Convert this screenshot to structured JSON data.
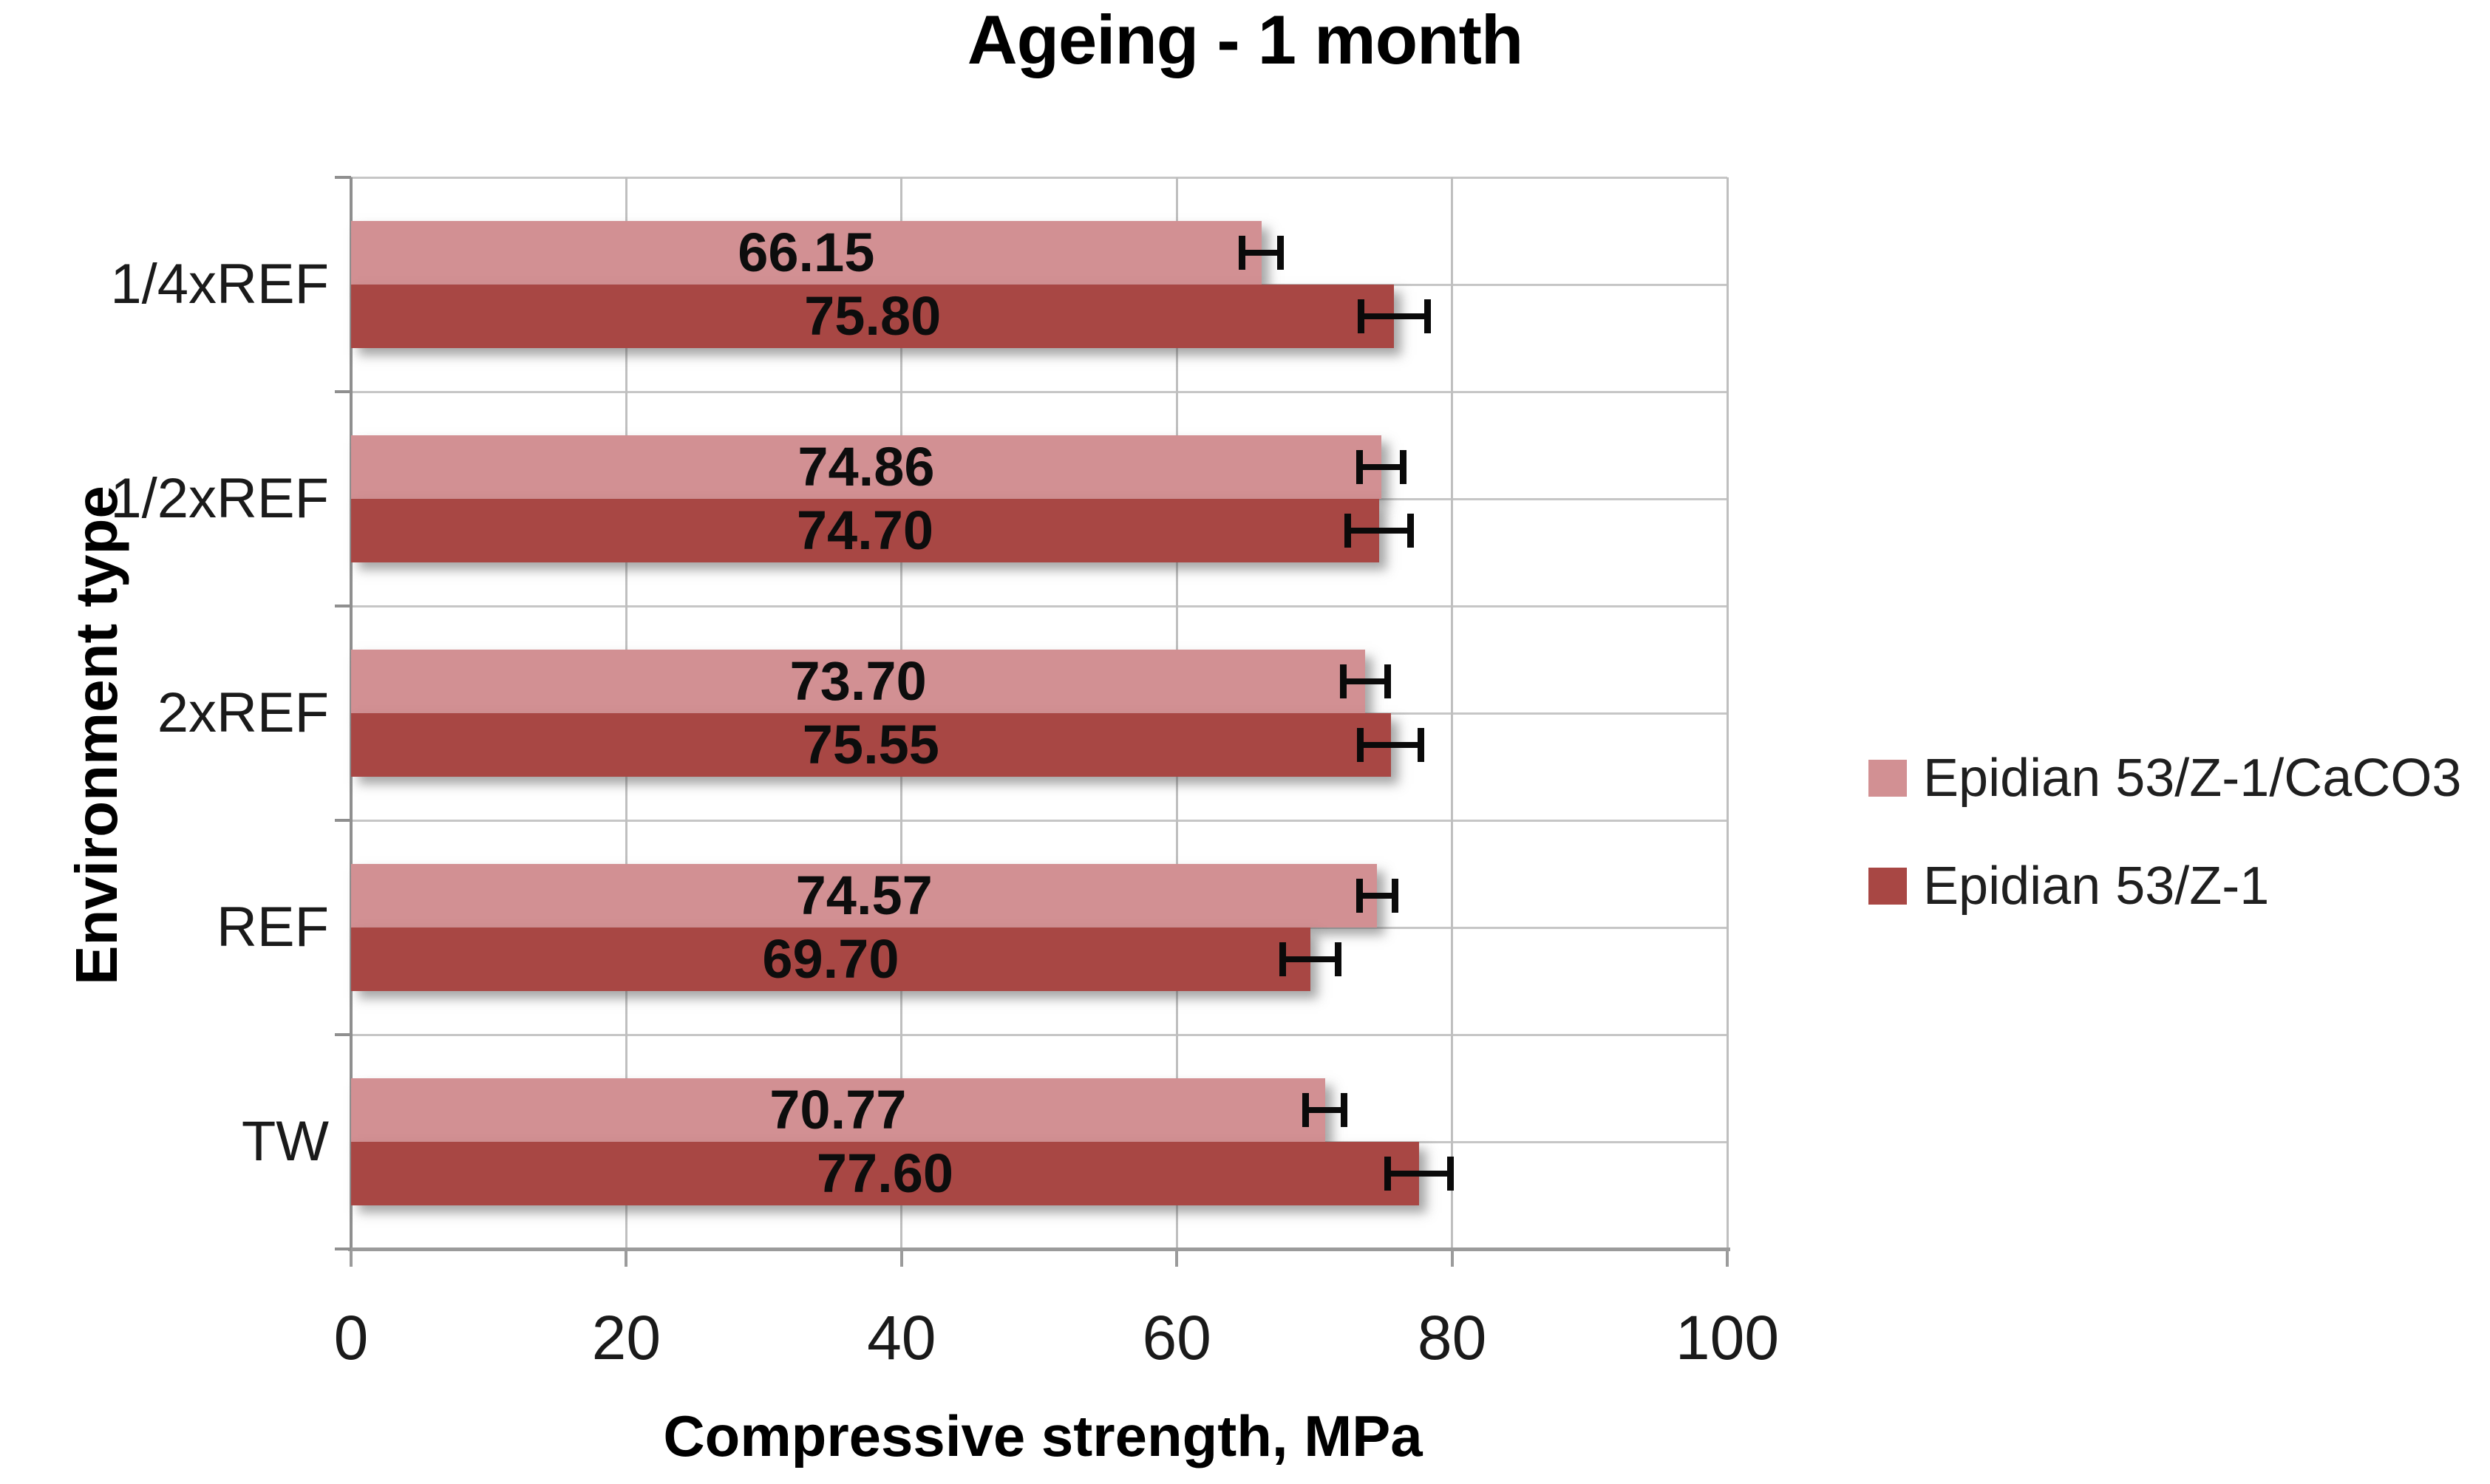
{
  "chart_data": {
    "type": "bar",
    "orientation": "horizontal",
    "title": "Ageing - 1 month",
    "xlabel": "Compressive strength, MPa",
    "ylabel": "Environment type",
    "categories": [
      "1/4xREF",
      "1/2xREF",
      "2xREF",
      "REF",
      "TW"
    ],
    "series": [
      {
        "name": "Epidian 53/Z-1/CaCO3",
        "color": "#D29093",
        "values": [
          66.15,
          74.86,
          73.7,
          74.57,
          70.77
        ],
        "errors": [
          1.4,
          1.6,
          1.6,
          1.3,
          1.4
        ]
      },
      {
        "name": "Epidian 53/Z-1",
        "color": "#A84744",
        "values": [
          75.8,
          74.7,
          75.55,
          69.7,
          77.6
        ],
        "errors": [
          2.4,
          2.3,
          2.2,
          2.0,
          2.3
        ]
      }
    ],
    "xlim": [
      0,
      100
    ],
    "xticks": [
      0,
      20,
      40,
      60,
      80,
      100
    ],
    "value_label_decimals": 2,
    "legend_position": "right",
    "grid": true,
    "gridline_color": "#C6C6C6",
    "axis_color": "#9B9B9B",
    "error_bar_color": "#0A0A0A"
  }
}
